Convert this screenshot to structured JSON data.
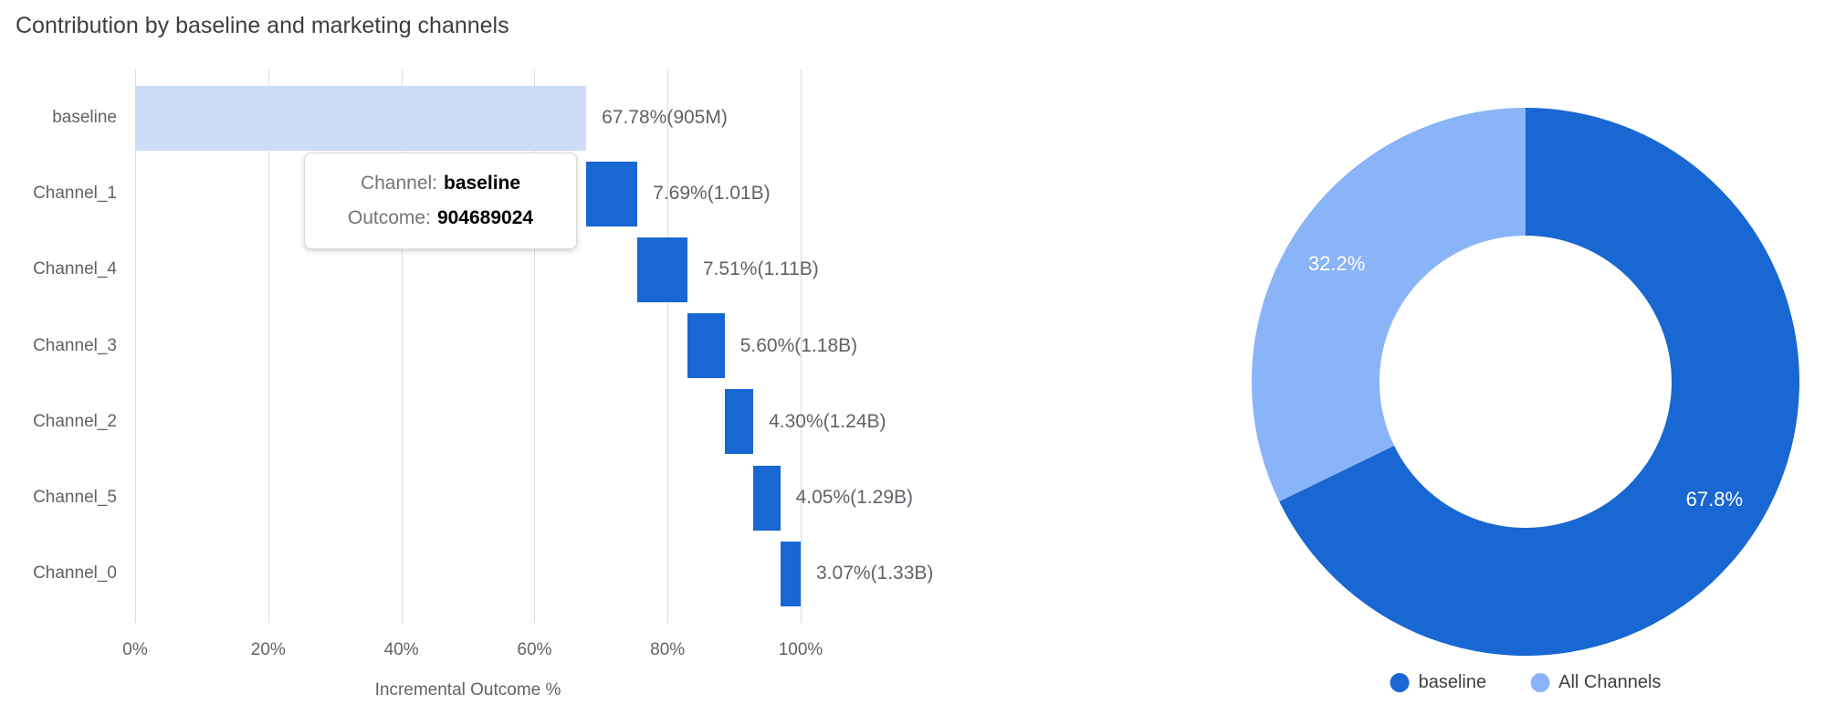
{
  "title": "Contribution by baseline and marketing channels",
  "tooltip": {
    "rows": [
      {
        "label": "Channel:",
        "value": "baseline"
      },
      {
        "label": "Outcome:",
        "value": "904689024"
      }
    ]
  },
  "chart_data": [
    {
      "type": "bar",
      "subtype": "horizontal_waterfall",
      "title": "Contribution by baseline and marketing channels",
      "xlabel": "Incremental Outcome %",
      "xlim": [
        0,
        100
      ],
      "grid": true,
      "x_ticks": [
        {
          "value": 0,
          "label": "0%"
        },
        {
          "value": 20,
          "label": "20%"
        },
        {
          "value": 40,
          "label": "40%"
        },
        {
          "value": 60,
          "label": "60%"
        },
        {
          "value": 80,
          "label": "80%"
        },
        {
          "value": 100,
          "label": "100%"
        }
      ],
      "categories": [
        "baseline",
        "Channel_1",
        "Channel_4",
        "Channel_3",
        "Channel_2",
        "Channel_5",
        "Channel_0"
      ],
      "rows": [
        {
          "category": "baseline",
          "start_pct": 0,
          "end_pct": 67.78,
          "value_pct": 67.78,
          "label": "67.78%(905M)",
          "color": "#cddcf7"
        },
        {
          "category": "Channel_1",
          "start_pct": 67.78,
          "end_pct": 75.47,
          "value_pct": 7.69,
          "label": "7.69%(1.01B)",
          "color": "#1967d2"
        },
        {
          "category": "Channel_4",
          "start_pct": 75.47,
          "end_pct": 82.98,
          "value_pct": 7.51,
          "label": "7.51%(1.11B)",
          "color": "#1967d2"
        },
        {
          "category": "Channel_3",
          "start_pct": 82.98,
          "end_pct": 88.58,
          "value_pct": 5.6,
          "label": "5.60%(1.18B)",
          "color": "#1967d2"
        },
        {
          "category": "Channel_2",
          "start_pct": 88.58,
          "end_pct": 92.88,
          "value_pct": 4.3,
          "label": "4.30%(1.24B)",
          "color": "#1967d2"
        },
        {
          "category": "Channel_5",
          "start_pct": 92.88,
          "end_pct": 96.93,
          "value_pct": 4.05,
          "label": "4.05%(1.29B)",
          "color": "#1967d2"
        },
        {
          "category": "Channel_0",
          "start_pct": 96.93,
          "end_pct": 100.0,
          "value_pct": 3.07,
          "label": "3.07%(1.33B)",
          "color": "#1967d2"
        }
      ]
    },
    {
      "type": "pie",
      "subtype": "donut",
      "start_angle_deg": 0,
      "direction": "clockwise",
      "slices": [
        {
          "label": "baseline",
          "value_pct": 67.8,
          "text": "67.8%",
          "color": "#1967d2"
        },
        {
          "label": "All Channels",
          "value_pct": 32.2,
          "text": "32.2%",
          "color": "#8ab4f8"
        }
      ],
      "legend": {
        "position": "bottom",
        "items": [
          "baseline",
          "All Channels"
        ]
      }
    }
  ],
  "colors": {
    "background": "#ffffff",
    "grid": "#dadce0",
    "axis_text": "#5f6368",
    "title_text": "#3c4043",
    "baseline_bar": "#cddcf7",
    "channel_bar": "#1967d2",
    "donut_dark": "#1967d2",
    "donut_light": "#8ab4f8",
    "donut_label_text": "#ffffff",
    "tooltip_label": "#757575",
    "tooltip_value": "#000000",
    "legend_text": "#3c4043"
  }
}
